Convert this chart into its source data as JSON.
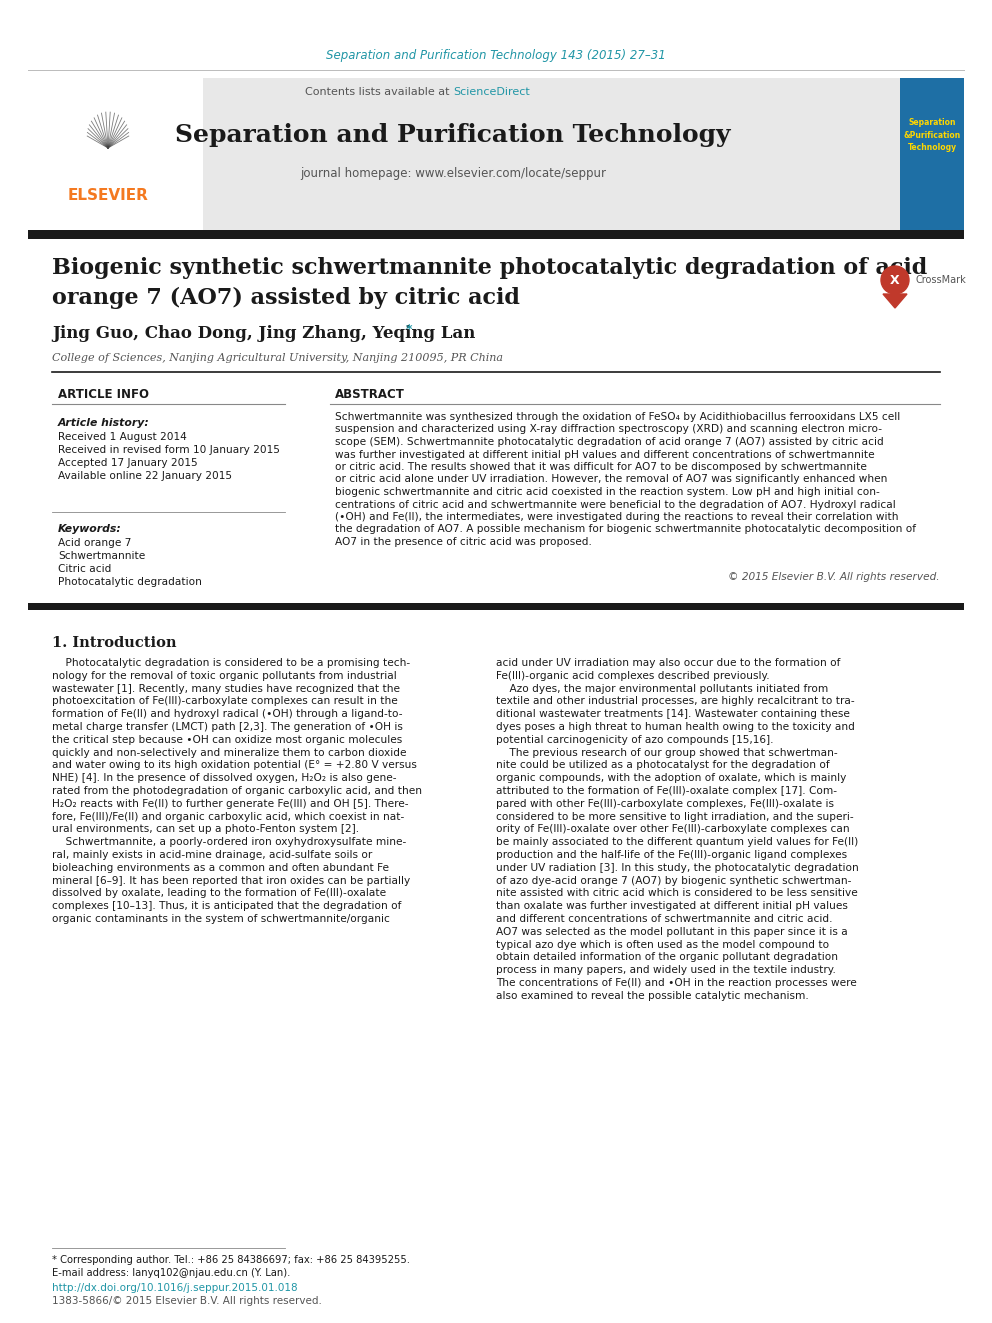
{
  "journal_cite": "Separation and Purification Technology 143 (2015) 27–31",
  "journal_cite_color": "#2196A6",
  "header_bg": "#E8E8E8",
  "header_journal_name": "Separation and Purification Technology",
  "header_sub": "journal homepage: www.elsevier.com/locate/seppur",
  "header_sub_color": "#555555",
  "contents_text": "Contents lists available at ",
  "sciencedirect_text": "ScienceDirect",
  "sciencedirect_color": "#2196A6",
  "article_title_line1": "Biogenic synthetic schwertmannite photocatalytic degradation of acid",
  "article_title_line2": "orange 7 (AO7) assisted by citric acid",
  "authors": "Jing Guo, Chao Dong, Jing Zhang, Yeqing Lan",
  "author_star": "*",
  "affiliation": "College of Sciences, Nanjing Agricultural University, Nanjing 210095, PR China",
  "section_article_info": "ARTICLE INFO",
  "section_abstract": "ABSTRACT",
  "article_history_label": "Article history:",
  "article_history": [
    "Received 1 August 2014",
    "Received in revised form 10 January 2015",
    "Accepted 17 January 2015",
    "Available online 22 January 2015"
  ],
  "keywords_label": "Keywords:",
  "keywords": [
    "Acid orange 7",
    "Schwertmannite",
    "Citric acid",
    "Photocatalytic degradation"
  ],
  "abstract_lines": [
    "Schwertmannite was synthesized through the oxidation of FeSO₄ by Acidithiobacillus ferrooxidans LX5 cell",
    "suspension and characterized using X-ray diffraction spectroscopy (XRD) and scanning electron micro-",
    "scope (SEM). Schwertmannite photocatalytic degradation of acid orange 7 (AO7) assisted by citric acid",
    "was further investigated at different initial pH values and different concentrations of schwertmannite",
    "or citric acid. The results showed that it was difficult for AO7 to be discomposed by schwertmannite",
    "or citric acid alone under UV irradiation. However, the removal of AO7 was significantly enhanced when",
    "biogenic schwertmannite and citric acid coexisted in the reaction system. Low pH and high initial con-",
    "centrations of citric acid and schwertmannite were beneficial to the degradation of AO7. Hydroxyl radical",
    "(•OH) and Fe(II), the intermediates, were investigated during the reactions to reveal their correlation with",
    "the degradation of AO7. A possible mechanism for biogenic schwertmannite photocatalytic decomposition of",
    "AO7 in the presence of citric acid was proposed."
  ],
  "copyright": "© 2015 Elsevier B.V. All rights reserved.",
  "intro_heading": "1. Introduction",
  "intro_col1_lines": [
    "    Photocatalytic degradation is considered to be a promising tech-",
    "nology for the removal of toxic organic pollutants from industrial",
    "wastewater [1]. Recently, many studies have recognized that the",
    "photoexcitation of Fe(III)-carboxylate complexes can result in the",
    "formation of Fe(II) and hydroxyl radical (•OH) through a ligand-to-",
    "metal charge transfer (LMCT) path [2,3]. The generation of •OH is",
    "the critical step because •OH can oxidize most organic molecules",
    "quickly and non-selectively and mineralize them to carbon dioxide",
    "and water owing to its high oxidation potential (E° = +2.80 V versus",
    "NHE) [4]. In the presence of dissolved oxygen, H₂O₂ is also gene-",
    "rated from the photodegradation of organic carboxylic acid, and then",
    "H₂O₂ reacts with Fe(II) to further generate Fe(III) and OH [5]. There-",
    "fore, Fe(III)/Fe(II) and organic carboxylic acid, which coexist in nat-",
    "ural environments, can set up a photo-Fenton system [2].",
    "    Schwertmannite, a poorly-ordered iron oxyhydroxysulfate mine-",
    "ral, mainly exists in acid-mine drainage, acid-sulfate soils or",
    "bioleaching environments as a common and often abundant Fe",
    "mineral [6–9]. It has been reported that iron oxides can be partially",
    "dissolved by oxalate, leading to the formation of Fe(III)-oxalate",
    "complexes [10–13]. Thus, it is anticipated that the degradation of",
    "organic contaminants in the system of schwertmannite/organic"
  ],
  "intro_col2_lines": [
    "acid under UV irradiation may also occur due to the formation of",
    "Fe(III)-organic acid complexes described previously.",
    "    Azo dyes, the major environmental pollutants initiated from",
    "textile and other industrial processes, are highly recalcitrant to tra-",
    "ditional wastewater treatments [14]. Wastewater containing these",
    "dyes poses a high threat to human health owing to the toxicity and",
    "potential carcinogenicity of azo compounds [15,16].",
    "    The previous research of our group showed that schwertman-",
    "nite could be utilized as a photocatalyst for the degradation of",
    "organic compounds, with the adoption of oxalate, which is mainly",
    "attributed to the formation of Fe(III)-oxalate complex [17]. Com-",
    "pared with other Fe(III)-carboxylate complexes, Fe(III)-oxalate is",
    "considered to be more sensitive to light irradiation, and the superi-",
    "ority of Fe(III)-oxalate over other Fe(III)-carboxylate complexes can",
    "be mainly associated to the different quantum yield values for Fe(II)",
    "production and the half-life of the Fe(III)-organic ligand complexes",
    "under UV radiation [3]. In this study, the photocatalytic degradation",
    "of azo dye-acid orange 7 (AO7) by biogenic synthetic schwertman-",
    "nite assisted with citric acid which is considered to be less sensitive",
    "than oxalate was further investigated at different initial pH values",
    "and different concentrations of schwertmannite and citric acid.",
    "AO7 was selected as the model pollutant in this paper since it is a",
    "typical azo dye which is often used as the model compound to",
    "obtain detailed information of the organic pollutant degradation",
    "process in many papers, and widely used in the textile industry.",
    "The concentrations of Fe(II) and •OH in the reaction processes were",
    "also examined to reveal the possible catalytic mechanism."
  ],
  "footer_note1": "* Corresponding author. Tel.: +86 25 84386697; fax: +86 25 84395255.",
  "footer_note2": "E-mail address: lanyq102@njau.edu.cn (Y. Lan).",
  "footer_doi": "http://dx.doi.org/10.1016/j.seppur.2015.01.018",
  "footer_issn": "1383-5866/© 2015 Elsevier B.V. All rights reserved.",
  "header_thick_line_color": "#1a1a1a",
  "elsevier_orange": "#F47920",
  "cover_bg_color": "#1E6FA5",
  "cover_text_color": "#FFD700",
  "bg_color": "#FFFFFF"
}
